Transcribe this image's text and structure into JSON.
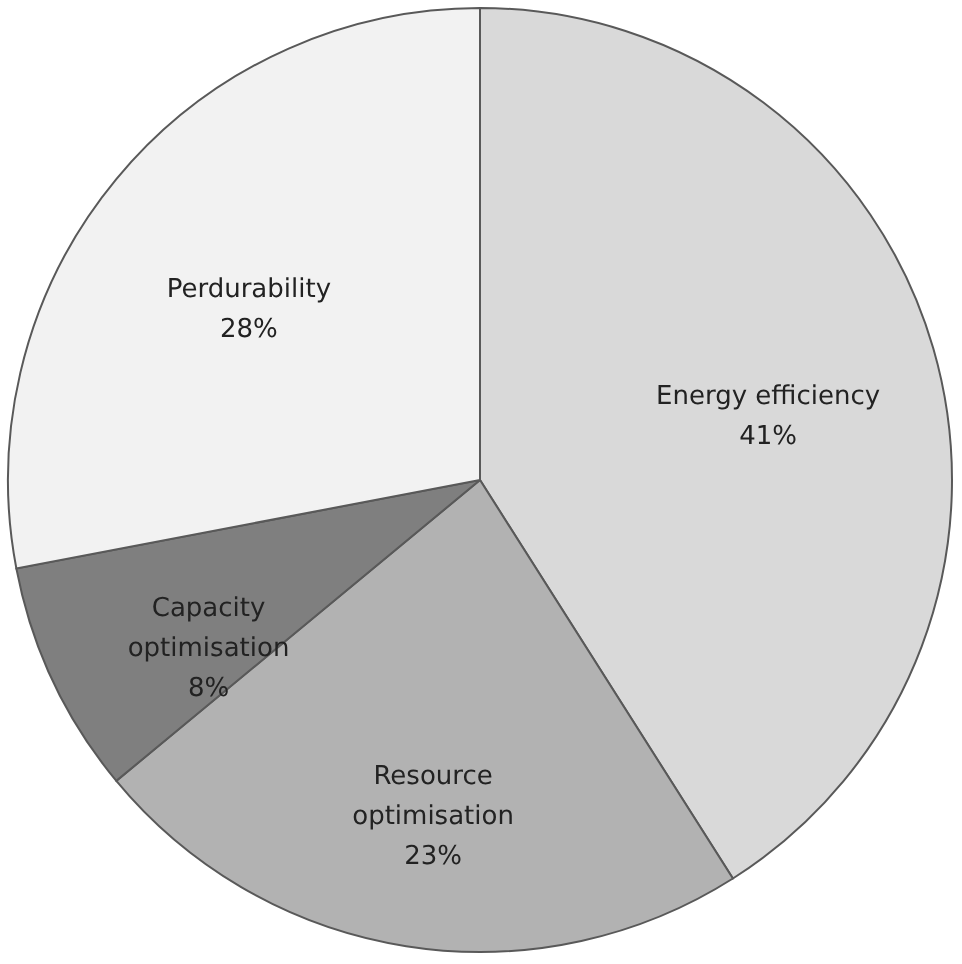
{
  "chart_data": {
    "type": "pie",
    "categories": [
      "Energy efficiency",
      "Resource optimisation",
      "Capacity optimisation",
      "Perdurability"
    ],
    "values": [
      41,
      23,
      8,
      28
    ],
    "colors": [
      "#d9d9d9",
      "#b2b2b2",
      "#7f7f7f",
      "#f2f2f2"
    ],
    "value_labels": [
      "41%",
      "23%",
      "8%",
      "28%"
    ]
  }
}
